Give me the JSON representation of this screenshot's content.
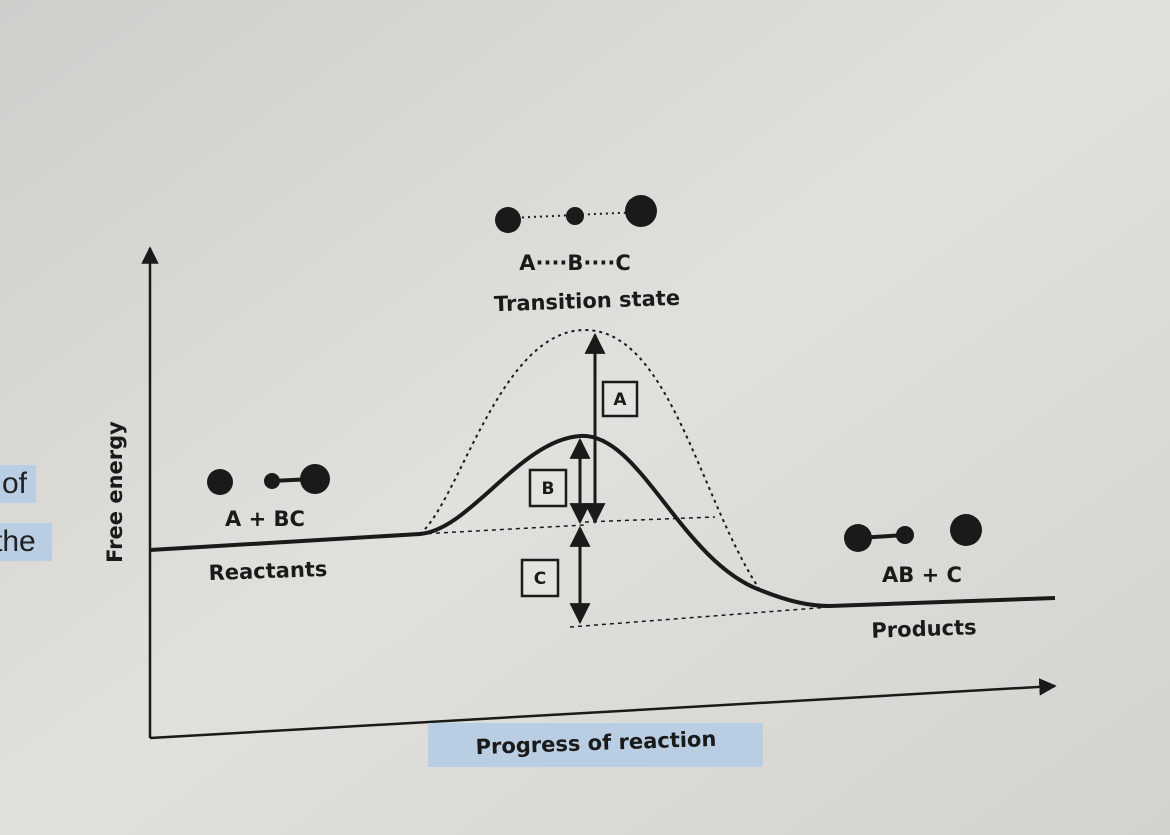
{
  "transition_state": {
    "formula": "A····B····C",
    "label": "Transition state"
  },
  "reactants": {
    "formula": "A + BC",
    "label": "Reactants"
  },
  "products": {
    "formula": "AB + C",
    "label": "Products"
  },
  "axes": {
    "y_label": "Free energy",
    "x_label": "Progress of reaction"
  },
  "boxes": [
    "A",
    "B",
    "C"
  ],
  "margin_text": [
    "of",
    "the"
  ]
}
